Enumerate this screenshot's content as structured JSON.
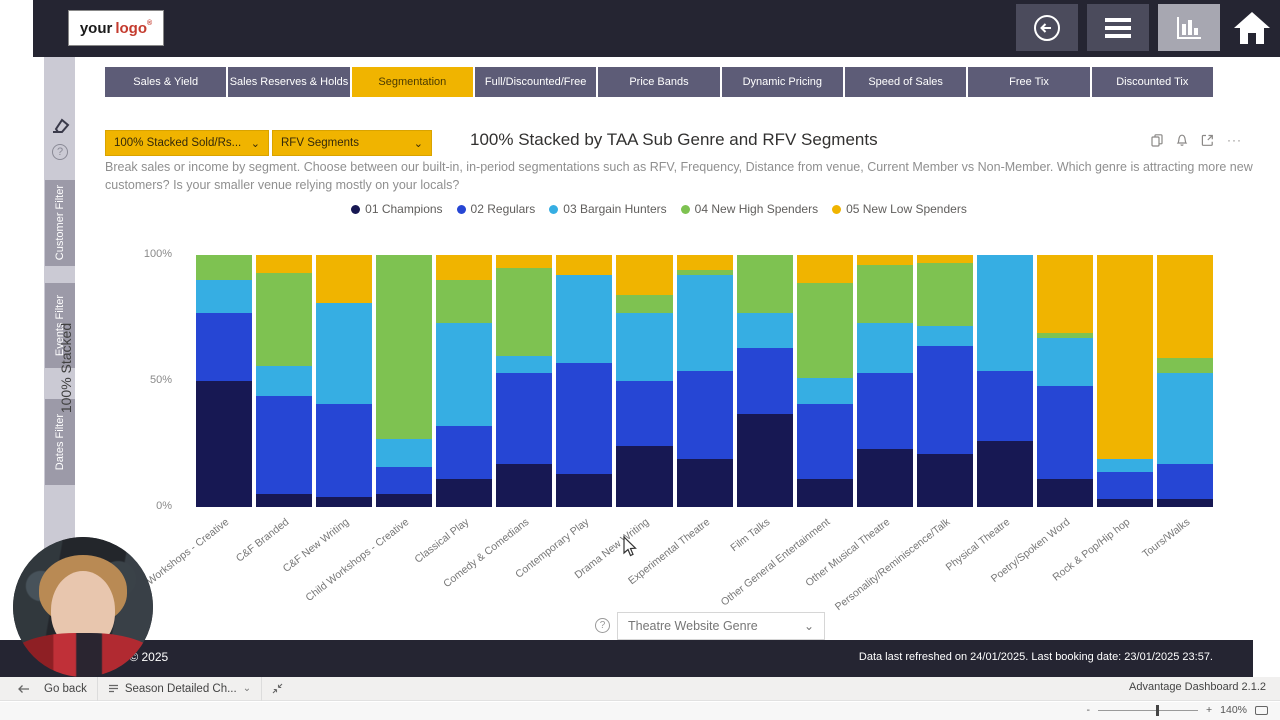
{
  "header": {
    "logo_your": "your",
    "logo_word": "logo",
    "logo_reg": "®"
  },
  "nav_tabs": {
    "items": [
      {
        "label": "Sales & Yield",
        "active": false
      },
      {
        "label": "Sales Reserves & Holds",
        "active": false
      },
      {
        "label": "Segmentation",
        "active": true
      },
      {
        "label": "Full/Discounted/Free",
        "active": false
      },
      {
        "label": "Price Bands",
        "active": false
      },
      {
        "label": "Dynamic Pricing",
        "active": false
      },
      {
        "label": "Speed of Sales",
        "active": false
      },
      {
        "label": "Free Tix",
        "active": false
      },
      {
        "label": "Discounted Tix",
        "active": false
      }
    ]
  },
  "sidebar": {
    "filters": [
      "Customer Filter",
      "Events Filter",
      "Dates Filter"
    ],
    "help_glyph": "?"
  },
  "controls": {
    "metric_dropdown": "100% Stacked Sold/Rs...",
    "segment_dropdown": "RFV Segments",
    "bottom_dropdown": "Theatre Website Genre",
    "bottom_help_glyph": "?",
    "chevron": "⌄",
    "more_options": "···"
  },
  "chart_data": {
    "type": "bar",
    "stacked_100": true,
    "title": "100% Stacked by TAA Sub Genre and RFV Segments",
    "description": "Break sales or income by segment. Choose between our built-in, in-period segmentations such as RFV, Frequency, Distance from venue, Current Member vs Non-Member. Which genre is attracting more new customers? Is your smaller venue relying mostly on your locals?",
    "ylabel": "100% Stacked",
    "ylim": [
      0,
      100
    ],
    "yticks": [
      "100%",
      "50%",
      "0%"
    ],
    "legend_position": "top",
    "categories": [
      "Workshops - Creative",
      "C&F Branded",
      "C&F New Writing",
      "Child Workshops - Creative",
      "Classical Play",
      "Comedy & Comedians",
      "Contemporary Play",
      "Drama New Writing",
      "Experimental Theatre",
      "Film Talks",
      "Other General Entertainment",
      "Other Musical Theatre",
      "Personality/Reminiscence/Talk",
      "Physical Theatre",
      "Poetry/Spoken Word",
      "Rock & Pop/Hip hop",
      "Tours/Walks"
    ],
    "series": [
      {
        "name": "01 Champions",
        "color": "#171853",
        "values": [
          50,
          5,
          4,
          5,
          11,
          17,
          13,
          24,
          19,
          37,
          11,
          23,
          21,
          26,
          11,
          3,
          3
        ]
      },
      {
        "name": "02 Regulars",
        "color": "#2646d4",
        "values": [
          27,
          39,
          37,
          11,
          21,
          36,
          44,
          26,
          35,
          26,
          30,
          30,
          43,
          28,
          37,
          11,
          14
        ]
      },
      {
        "name": "03 Bargain Hunters",
        "color": "#36aee3",
        "values": [
          13,
          12,
          40,
          11,
          41,
          7,
          35,
          27,
          38,
          14,
          10,
          20,
          8,
          46,
          19,
          5,
          36
        ]
      },
      {
        "name": "04 New High Spenders",
        "color": "#7ec251",
        "values": [
          10,
          37,
          0,
          73,
          17,
          35,
          0,
          7,
          2,
          23,
          38,
          23,
          25,
          0,
          2,
          0,
          6
        ]
      },
      {
        "name": "05 New Low Spenders",
        "color": "#f0b400",
        "values": [
          0,
          7,
          19,
          0,
          10,
          5,
          8,
          16,
          6,
          0,
          11,
          4,
          3,
          0,
          31,
          81,
          41
        ]
      }
    ]
  },
  "footer": {
    "copyright": "s © 2025",
    "refresh_text": "Data last refreshed on 24/01/2025. Last booking date: 23/01/2025 23:57."
  },
  "taskbar": {
    "go_back": "Go back",
    "page_selector": "Season Detailed Ch...",
    "version": "Advantage Dashboard 2.1.2"
  },
  "statusbar": {
    "zoom_out": "-",
    "zoom_in": "+",
    "zoom_level": "140%"
  }
}
